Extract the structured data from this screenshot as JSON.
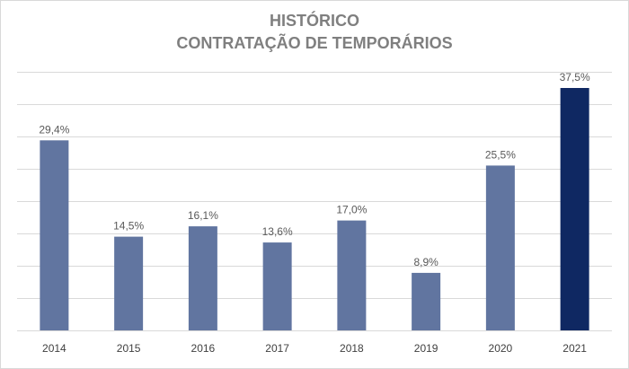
{
  "chart_data": {
    "type": "bar",
    "title": "HISTÓRICO",
    "subtitle": "CONTRATAÇÃO DE TEMPORÁRIOS",
    "xlabel": "",
    "ylabel": "",
    "categories": [
      "2014",
      "2015",
      "2016",
      "2017",
      "2018",
      "2019",
      "2020",
      "2021"
    ],
    "values": [
      29.4,
      14.5,
      16.1,
      13.6,
      17.0,
      8.9,
      25.5,
      37.5
    ],
    "value_labels": [
      "29,4%",
      "14,5%",
      "16,1%",
      "13,6%",
      "17,0%",
      "8,9%",
      "25,5%",
      "37,5%"
    ],
    "ylim": [
      0,
      40
    ],
    "gridlines": [
      0,
      5,
      10,
      15,
      20,
      25,
      30,
      35,
      40
    ],
    "grid": true,
    "legend": "none",
    "colors": {
      "bar": "#6175a0",
      "highlight_bar": "#0f2862",
      "grid": "#d9d9d9",
      "title": "#7f7f7f"
    },
    "highlight_index": 7
  }
}
